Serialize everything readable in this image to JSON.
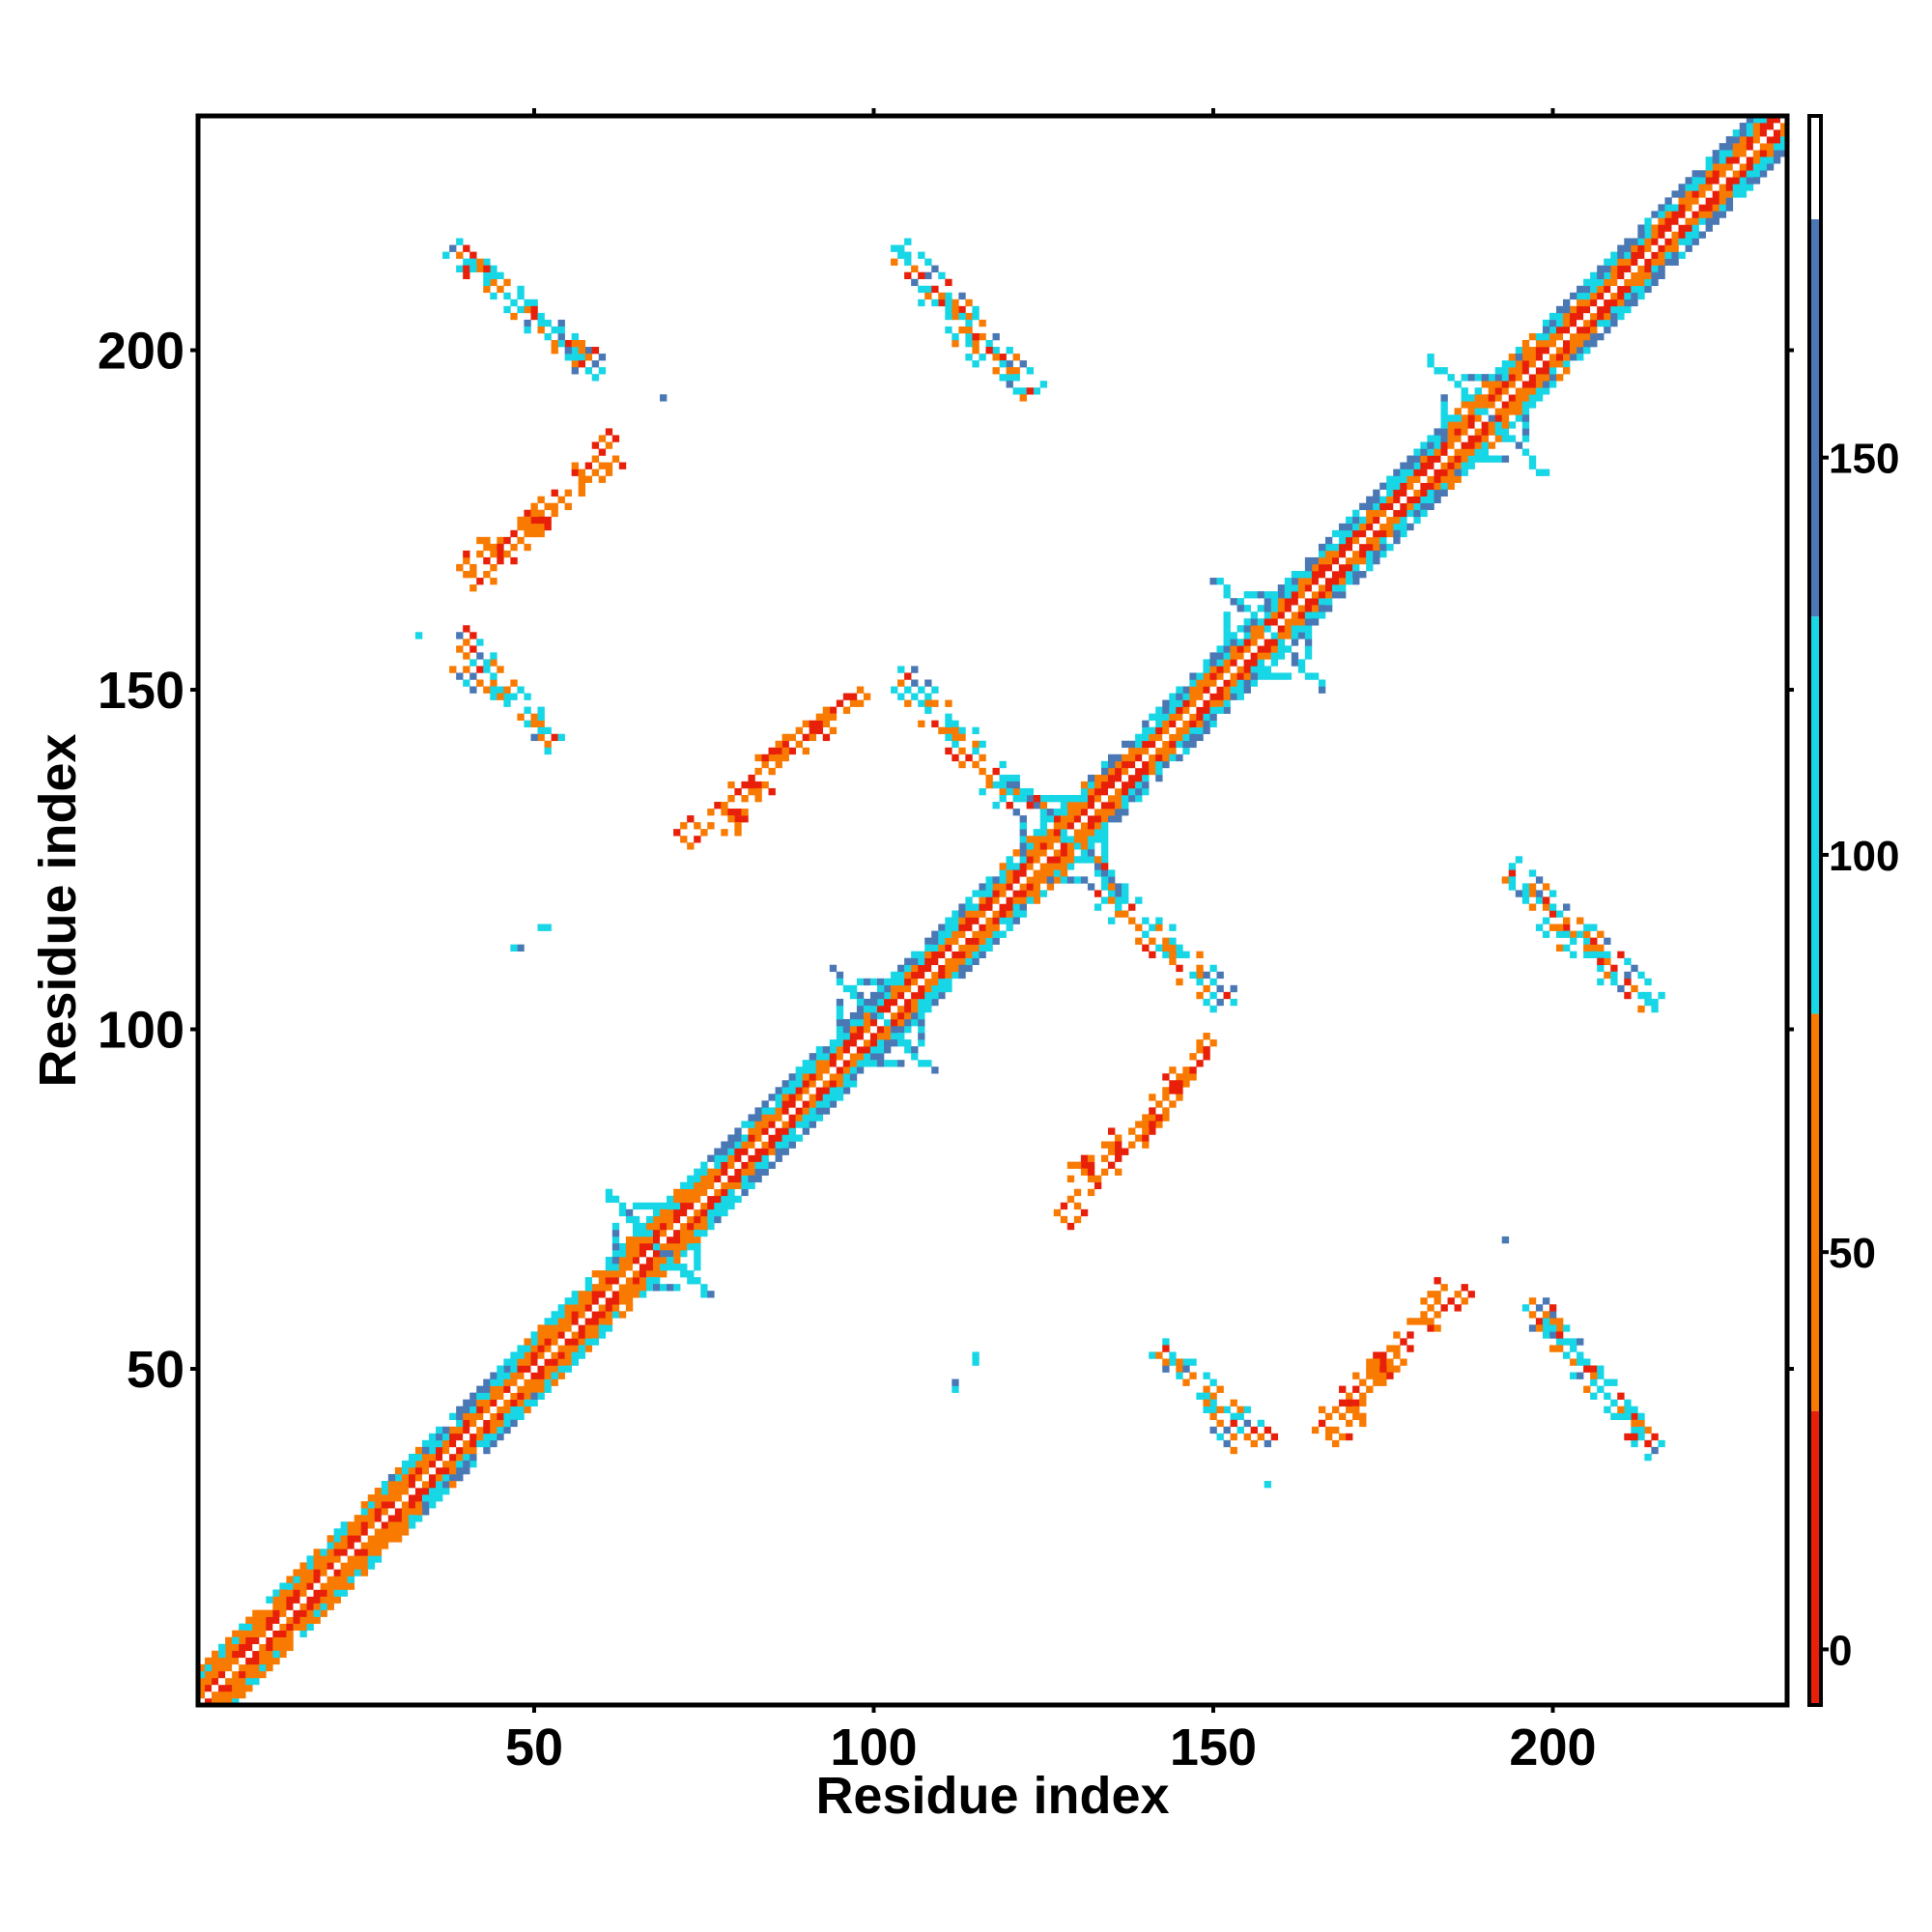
{
  "chart_data": {
    "type": "heatmap",
    "title": "",
    "xlabel": "Residue index",
    "ylabel": "Residue index",
    "xlim": [
      0.5,
      234.5
    ],
    "ylim": [
      0.5,
      234.5
    ],
    "x_ticks": [
      50,
      100,
      150,
      200
    ],
    "y_ticks": [
      50,
      100,
      150,
      200
    ],
    "grid": false,
    "colorbar": {
      "ticks": [
        0,
        50,
        100,
        150
      ],
      "range": [
        -7,
        193
      ],
      "bands": [
        {
          "from": -7,
          "to": 30,
          "color": "#e8200a"
        },
        {
          "from": 30,
          "to": 80,
          "color": "#f97a00"
        },
        {
          "from": 80,
          "to": 130,
          "color": "#17d6e6"
        },
        {
          "from": 130,
          "to": 180,
          "color": "#4a78b4"
        },
        {
          "from": 180,
          "to": 193,
          "color": "#ffffff"
        }
      ]
    },
    "features": [
      {
        "kind": "diagonal",
        "from": 1,
        "to": 234
      },
      {
        "kind": "hub",
        "center": 68,
        "spread": 7
      },
      {
        "kind": "hub",
        "center": 101,
        "spread": 7
      },
      {
        "kind": "hub",
        "center": 128,
        "spread": 8
      },
      {
        "kind": "hub",
        "center": 158,
        "spread": 8
      },
      {
        "kind": "hub",
        "center": 190,
        "spread": 8
      },
      {
        "kind": "strand",
        "points": [
          [
            38,
            215
          ],
          [
            60,
            197
          ]
        ]
      },
      {
        "kind": "strand",
        "points": [
          [
            39,
            168
          ],
          [
            50,
            175
          ],
          [
            62,
            184
          ]
        ]
      },
      {
        "kind": "strand",
        "points": [
          [
            38,
            155
          ],
          [
            52,
            142
          ]
        ]
      },
      {
        "kind": "strand",
        "points": [
          [
            104,
            215
          ],
          [
            124,
            194
          ]
        ]
      },
      {
        "kind": "strand",
        "points": [
          [
            72,
            128
          ],
          [
            82,
            137
          ],
          [
            92,
            147
          ]
        ]
      },
      {
        "kind": "strand",
        "points": [
          [
            104,
            153
          ],
          [
            125,
            131
          ]
        ]
      },
      {
        "kind": "strand",
        "points": [
          [
            132,
            121
          ],
          [
            151,
            104
          ]
        ]
      },
      {
        "kind": "strand",
        "points": [
          [
            128,
            79
          ],
          [
            140,
            86
          ],
          [
            149,
            99
          ]
        ]
      },
      {
        "kind": "strand",
        "points": [
          [
            193,
            122
          ],
          [
            213,
            103
          ]
        ]
      },
      {
        "kind": "strand",
        "points": [
          [
            142,
            53
          ],
          [
            158,
            39
          ]
        ]
      },
      {
        "kind": "strand",
        "points": [
          [
            165,
            41
          ],
          [
            175,
            51
          ],
          [
            187,
            62
          ]
        ]
      },
      {
        "kind": "strand",
        "points": [
          [
            196,
            59
          ],
          [
            214,
            39
          ]
        ]
      },
      {
        "kind": "dots",
        "points": [
          [
            48,
            112
          ],
          [
            51,
            115
          ],
          [
            112,
            47
          ],
          [
            115,
            52
          ],
          [
            158,
            33
          ],
          [
            193,
            69
          ]
        ]
      }
    ]
  }
}
